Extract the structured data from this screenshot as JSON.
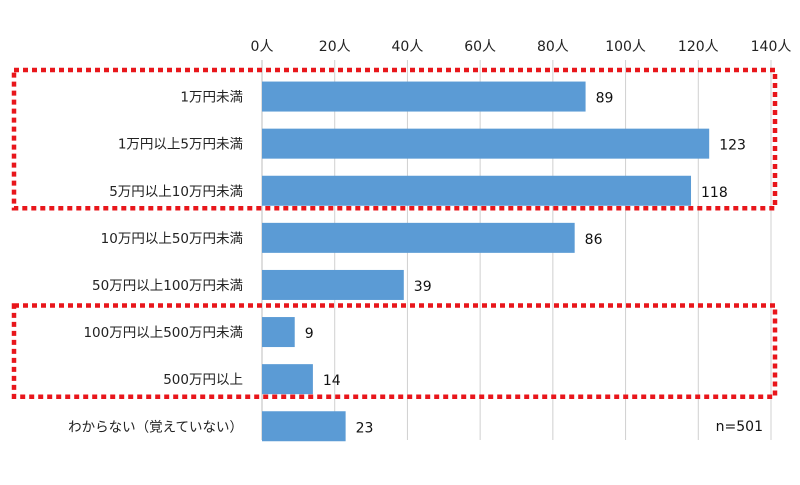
{
  "chart_data": {
    "type": "bar",
    "orientation": "horizontal",
    "categories": [
      "1万円未満",
      "1万円以上5万円未満",
      "5万円以上10万円未満",
      "10万円以上50万円未満",
      "50万円以上100万円未満",
      "100万円以上500万円未満",
      "500万円以上",
      "わからない（覚えていない）"
    ],
    "values": [
      89,
      123,
      118,
      86,
      39,
      9,
      14,
      23
    ],
    "x_ticks": [
      "0人",
      "20人",
      "40人",
      "60人",
      "80人",
      "100人",
      "120人",
      "140人"
    ],
    "xlim": [
      0,
      140
    ],
    "grid": true,
    "axis_position": "top",
    "bar_color": "#5b9bd5",
    "note": "n=501",
    "highlight_groups": [
      {
        "categories": [
          0,
          1,
          2
        ],
        "color": "#e8161b",
        "style": "dotted"
      },
      {
        "categories": [
          5,
          6
        ],
        "color": "#e8161b",
        "style": "dotted"
      }
    ]
  }
}
